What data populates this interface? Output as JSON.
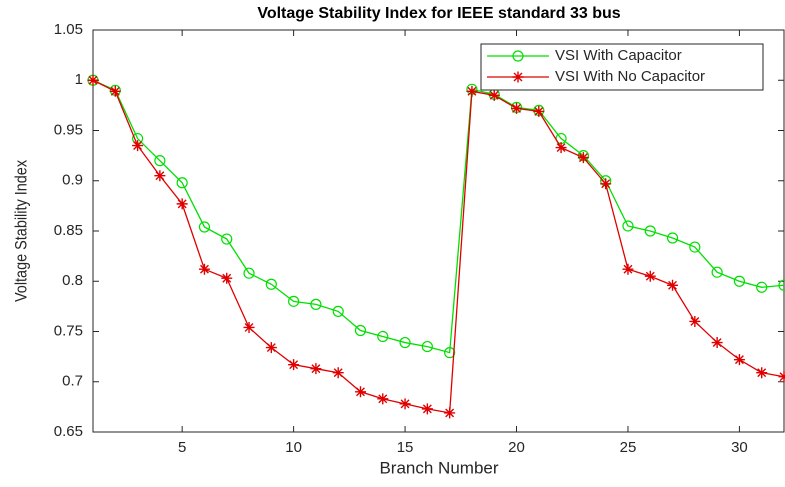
{
  "chart_data": {
    "type": "line",
    "title": "Voltage Stability Index for IEEE standard 33 bus",
    "xlabel": "Branch Number",
    "ylabel": "Voltage Stability Index",
    "x": [
      1,
      2,
      3,
      4,
      5,
      6,
      7,
      8,
      9,
      10,
      11,
      12,
      13,
      14,
      15,
      16,
      17,
      18,
      19,
      20,
      21,
      22,
      23,
      24,
      25,
      26,
      27,
      28,
      29,
      30,
      31,
      32
    ],
    "series": [
      {
        "name": "VSI With Capacitor",
        "color": "#00e000",
        "marker": "circle",
        "values": [
          1.0,
          0.99,
          0.942,
          0.92,
          0.898,
          0.854,
          0.842,
          0.808,
          0.797,
          0.78,
          0.777,
          0.77,
          0.751,
          0.745,
          0.739,
          0.735,
          0.729,
          0.991,
          0.986,
          0.973,
          0.97,
          0.942,
          0.925,
          0.9,
          0.855,
          0.85,
          0.843,
          0.834,
          0.809,
          0.8,
          0.794,
          0.796
        ]
      },
      {
        "name": "VSI With No Capacitor",
        "color": "#e00000",
        "marker": "asterisk",
        "values": [
          1.0,
          0.989,
          0.935,
          0.905,
          0.877,
          0.812,
          0.803,
          0.754,
          0.734,
          0.717,
          0.713,
          0.709,
          0.69,
          0.683,
          0.678,
          0.673,
          0.669,
          0.989,
          0.985,
          0.972,
          0.969,
          0.933,
          0.923,
          0.897,
          0.812,
          0.805,
          0.796,
          0.76,
          0.739,
          0.722,
          0.709,
          0.705
        ]
      }
    ],
    "xlim": [
      1,
      32
    ],
    "xticks": [
      5,
      10,
      15,
      20,
      25,
      30
    ],
    "ylim": [
      0.65,
      1.05
    ],
    "yticks": [
      0.65,
      0.7,
      0.75,
      0.8,
      0.85,
      0.9,
      0.95,
      1,
      1.05
    ],
    "legend": "northeast"
  }
}
